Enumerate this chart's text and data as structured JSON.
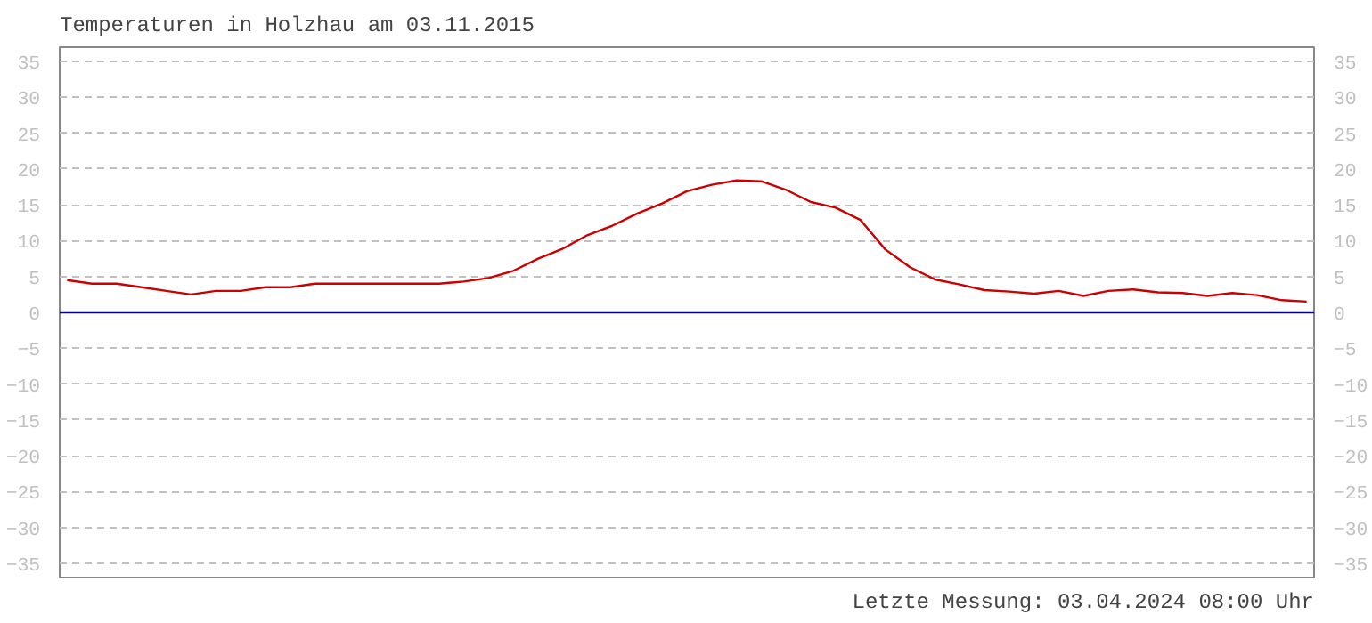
{
  "chart_data": {
    "type": "line",
    "title": "Temperaturen in Holzhau am 03.11.2015",
    "categories": [
      null,
      null,
      null,
      null,
      null,
      null,
      null,
      null,
      null,
      null,
      null,
      null,
      null,
      null,
      null,
      null,
      null,
      null,
      null,
      null,
      null,
      null,
      null,
      null,
      null,
      null,
      null,
      null,
      null,
      null,
      null,
      null,
      null,
      null,
      null,
      null,
      null,
      null,
      null,
      null,
      null,
      null,
      null,
      null,
      null,
      null,
      null,
      null,
      null,
      null,
      null
    ],
    "series": [
      {
        "color": "#cc0000",
        "values": [
          4.5,
          4.0,
          4.0,
          3.5,
          3.0,
          2.5,
          3.0,
          3.0,
          3.5,
          3.5,
          4.0,
          4.0,
          4.0,
          4.0,
          4.0,
          4.0,
          4.3,
          4.8,
          5.8,
          7.5,
          8.9,
          10.8,
          12.1,
          13.8,
          15.2,
          16.9,
          17.8,
          18.4,
          18.3,
          17.1,
          15.4,
          14.6,
          12.9,
          8.8,
          6.3,
          4.6,
          3.9,
          3.1,
          2.9,
          2.6,
          3.0,
          2.3,
          3.0,
          3.2,
          2.8,
          2.7,
          2.3,
          2.7,
          2.4,
          1.7,
          1.5
        ]
      }
    ],
    "ylim": [
      -37,
      37
    ],
    "yticks": [
      -35,
      -30,
      -25,
      -20,
      -15,
      -10,
      -5,
      0,
      5,
      10,
      15,
      20,
      25,
      30,
      35
    ],
    "y2lim": [
      -37,
      37
    ],
    "y2ticks": [
      -35,
      -30,
      -25,
      -20,
      -15,
      -10,
      -5,
      0,
      5,
      10,
      15,
      20,
      25,
      30,
      35
    ],
    "grid": "y",
    "tick_labels": "y",
    "line_style": "solid",
    "ref_lines": [
      {
        "axis": "y",
        "value": 0,
        "color": "#000080",
        "line_style": "solid"
      }
    ],
    "annotations": [
      "Letzte Messung: 03.04.2024 08:00 Uhr"
    ]
  }
}
